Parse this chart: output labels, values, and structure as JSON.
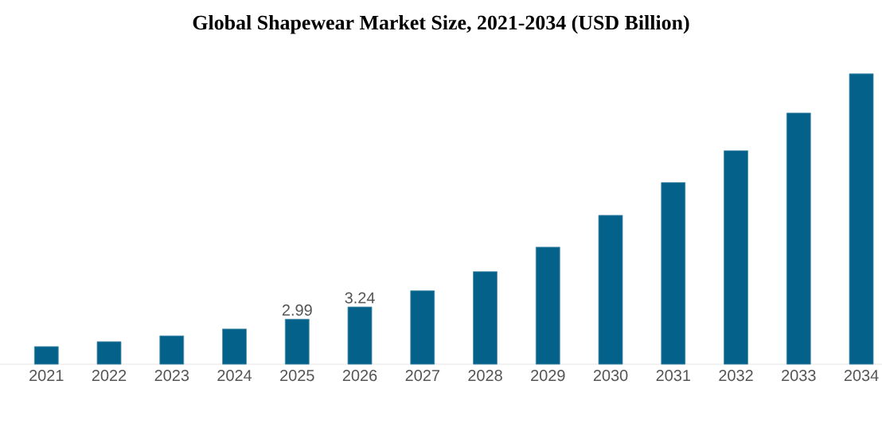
{
  "chart_data": {
    "type": "bar",
    "title": "Global Shapewear Market Size, 2021-2034 (USD Billion)",
    "categories": [
      "2021",
      "2022",
      "2023",
      "2024",
      "2025",
      "2026",
      "2027",
      "2028",
      "2029",
      "2030",
      "2031",
      "2032",
      "2033",
      "2034"
    ],
    "values": [
      2.43,
      2.53,
      2.65,
      2.79,
      2.99,
      3.24,
      3.57,
      3.96,
      4.46,
      5.11,
      5.78,
      6.43,
      7.2,
      8.0
    ],
    "value_labels": [
      null,
      null,
      null,
      null,
      "2.99",
      "3.24",
      null,
      null,
      null,
      null,
      null,
      null,
      null,
      null
    ],
    "color": "#04628a",
    "ylim": [
      2.07,
      8.0
    ],
    "tick_labels": "x"
  }
}
